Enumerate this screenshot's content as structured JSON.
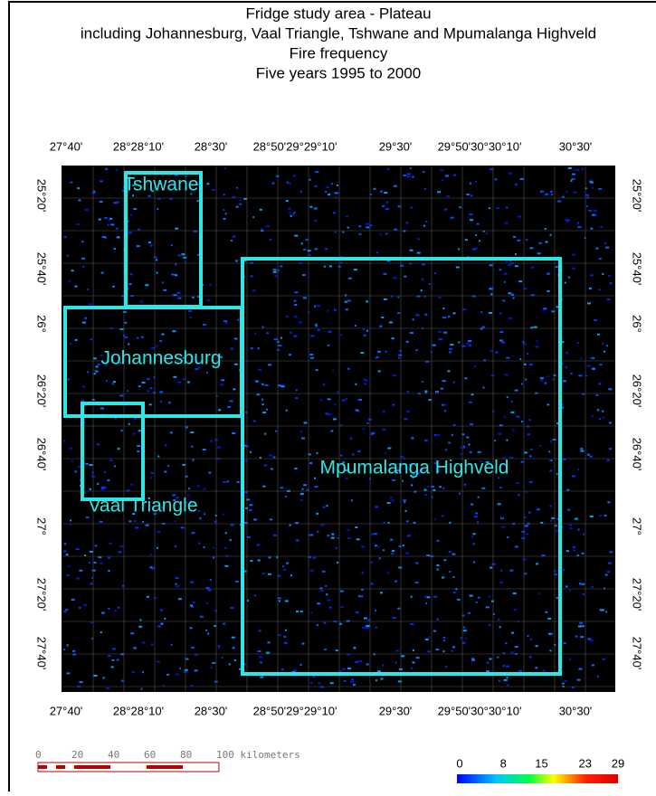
{
  "title": [
    "Fridge study area - Plateau",
    "including Johannesburg, Vaal Triangle, Tshwane and Mpumalanga Highveld",
    "Fire frequency",
    "Five years 1995 to 2000"
  ],
  "map": {
    "top_labels": [
      "27°40'",
      "28°28°10'",
      "28°30'",
      "28°50'29°29°10'",
      "29°30'",
      "29°50'30°30°10'",
      "30°30'"
    ],
    "bottom_labels": [
      "27°40'",
      "28°28°10'",
      "28°30'",
      "28°50'29°29°10'",
      "29°30'",
      "29°50'30°30°10'",
      "30°30'"
    ],
    "left_labels": [
      "25°20'",
      "25°40'",
      "26°",
      "26°20'",
      "26°40'",
      "27°",
      "27°20'",
      "27°40'"
    ],
    "right_labels": [
      "25°20'",
      "25°40'",
      "26°",
      "26°20'",
      "26°40'",
      "27°",
      "27°20'",
      "27°40'"
    ],
    "regions": [
      "Tshwane",
      "Johannesburg",
      "Vaal Triangle",
      "Mpumalanga Highveld"
    ]
  },
  "scale_bar": [
    "0",
    "20",
    "40",
    "60",
    "80",
    "100 kilometers"
  ],
  "legend": {
    "ticks": [
      0,
      8,
      15,
      23,
      29
    ]
  }
}
